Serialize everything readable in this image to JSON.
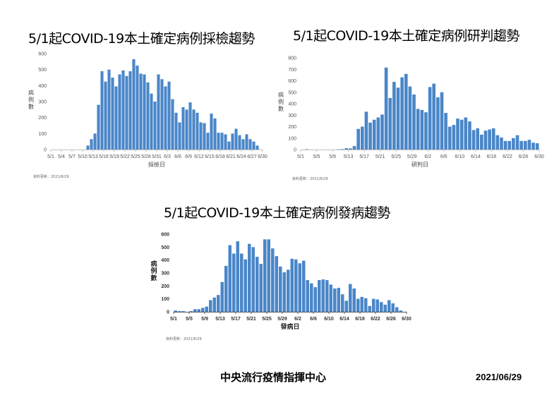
{
  "footer": {
    "organization": "中央流行疫情指揮中心",
    "date": "2021/06/29"
  },
  "colors": {
    "bar": "#4a86c8",
    "axis": "#bfbfbf"
  },
  "chart_data": [
    {
      "id": "sampling",
      "type": "bar",
      "title": "5/1起COVID-19本土確定病例採檢趨勢",
      "xlabel": "採檢日",
      "ylabel": "病例數",
      "note": "資料更新：2021/6/29",
      "ylim": [
        0,
        600
      ],
      "yticks": [
        0,
        100,
        200,
        300,
        400,
        500,
        600
      ],
      "xtick_labels": [
        "5/1",
        "5/4",
        "5/7",
        "5/10",
        "5/13",
        "5/16",
        "5/19",
        "5/22",
        "5/25",
        "5/28",
        "5/31",
        "6/3",
        "6/6",
        "6/9",
        "6/12",
        "6/15",
        "6/18",
        "6/21",
        "6/24",
        "6/27",
        "6/30"
      ],
      "xtick_step": 3,
      "start_date": "5/1",
      "num_days": 60,
      "values": [
        0,
        0,
        0,
        0,
        0,
        0,
        0,
        0,
        0,
        0,
        25,
        65,
        100,
        280,
        490,
        425,
        500,
        450,
        395,
        470,
        495,
        460,
        490,
        565,
        525,
        475,
        470,
        420,
        350,
        300,
        470,
        440,
        395,
        425,
        315,
        230,
        170,
        265,
        250,
        295,
        250,
        230,
        170,
        165,
        105,
        225,
        195,
        105,
        105,
        95,
        50,
        100,
        130,
        90,
        65,
        95,
        65,
        50,
        25,
        0
      ]
    },
    {
      "id": "diagnosis",
      "type": "bar",
      "title": "5/1起COVID-19本土確定病例研判趨勢",
      "xlabel": "研判日",
      "ylabel": "病例數",
      "note": "資料更新：2021/6/29",
      "ylim": [
        0,
        800
      ],
      "yticks": [
        0,
        100,
        200,
        300,
        400,
        500,
        600,
        700,
        800
      ],
      "xtick_labels": [
        "5/1",
        "5/5",
        "5/9",
        "5/13",
        "5/17",
        "5/21",
        "5/25",
        "5/29",
        "6/2",
        "6/6",
        "6/10",
        "6/14",
        "6/18",
        "6/22",
        "6/26",
        "6/30"
      ],
      "xtick_step": 4,
      "start_date": "5/1",
      "num_days": 60,
      "values": [
        0,
        3,
        0,
        0,
        0,
        0,
        0,
        0,
        0,
        2,
        4,
        12,
        10,
        30,
        180,
        200,
        330,
        235,
        260,
        280,
        305,
        715,
        450,
        590,
        540,
        630,
        660,
        550,
        480,
        355,
        345,
        325,
        545,
        575,
        455,
        500,
        320,
        200,
        215,
        270,
        260,
        280,
        245,
        170,
        185,
        130,
        165,
        175,
        185,
        125,
        105,
        75,
        75,
        100,
        125,
        75,
        75,
        85,
        60,
        55
      ]
    },
    {
      "id": "onset",
      "type": "bar",
      "title": "5/1起COVID-19本土確定病例發病趨勢",
      "xlabel": "發病日",
      "ylabel": "病例數",
      "note": "資料更新：2021/6/29",
      "ylim": [
        0,
        600
      ],
      "yticks": [
        0,
        100,
        200,
        300,
        400,
        500,
        600
      ],
      "xtick_labels": [
        "5/1",
        "5/5",
        "5/9",
        "5/13",
        "5/17",
        "5/21",
        "5/25",
        "5/29",
        "6/2",
        "6/6",
        "6/10",
        "6/14",
        "6/18",
        "6/22",
        "6/26",
        "6/30"
      ],
      "xtick_step": 4,
      "start_date": "5/1",
      "num_days": 60,
      "values": [
        10,
        5,
        5,
        0,
        5,
        20,
        20,
        30,
        40,
        90,
        110,
        130,
        230,
        355,
        515,
        450,
        545,
        450,
        405,
        525,
        500,
        425,
        370,
        560,
        560,
        490,
        430,
        350,
        305,
        325,
        410,
        405,
        375,
        395,
        245,
        220,
        190,
        245,
        250,
        245,
        210,
        180,
        185,
        135,
        85,
        215,
        180,
        100,
        115,
        105,
        45,
        100,
        95,
        75,
        55,
        90,
        65,
        35,
        10,
        0
      ]
    }
  ]
}
